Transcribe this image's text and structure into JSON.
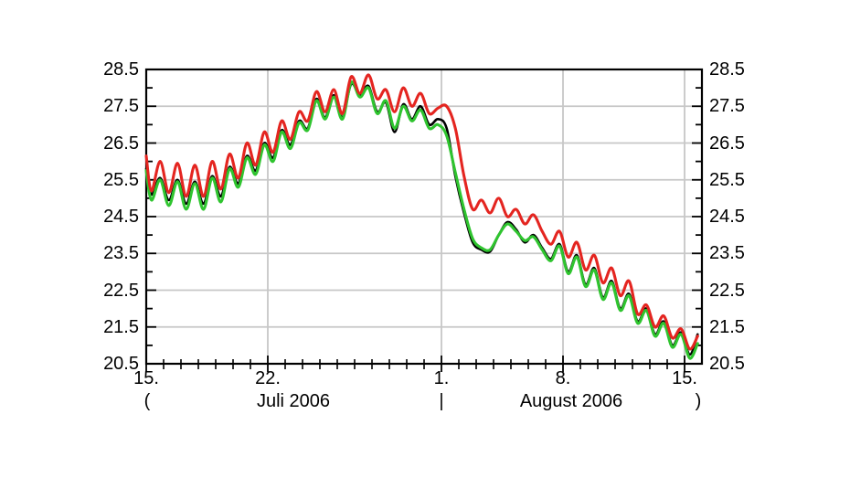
{
  "chart_data": {
    "type": "line",
    "title": "",
    "xlabel": "",
    "ylabel": "",
    "x_unit": "days-since-15-July-2006",
    "x_range": [
      0,
      32
    ],
    "y_range": [
      20.5,
      28.5
    ],
    "grid": {
      "color": "#c7c7c7",
      "h_values": [
        21.5,
        22.5,
        23.5,
        24.5,
        25.5,
        26.5,
        27.5
      ],
      "v_days": [
        7,
        17,
        24,
        31
      ]
    },
    "y_axis": {
      "tick_step_minor": 0.5,
      "labels": [
        "28.5",
        "27.5",
        "26.5",
        "25.5",
        "24.5",
        "23.5",
        "22.5",
        "21.5",
        "20.5"
      ],
      "values": [
        28.5,
        27.5,
        26.5,
        25.5,
        24.5,
        23.5,
        22.5,
        21.5,
        20.5
      ],
      "shown_on": [
        "left",
        "right"
      ]
    },
    "x_axis": {
      "minor_tick_every_days": 1,
      "major_days": [
        0,
        7,
        17,
        24,
        31
      ],
      "tick_labels": [
        {
          "text": "15.",
          "day": 0
        },
        {
          "text": "22.",
          "day": 7
        },
        {
          "text": "1.",
          "day": 17
        },
        {
          "text": "8.",
          "day": 24
        },
        {
          "text": "15.",
          "day": 31
        }
      ]
    },
    "footer": {
      "open_bracket": "(",
      "july_label": "Juli 2006",
      "separator": "|",
      "august_label": "August 2006",
      "close_bracket": ")"
    },
    "x": [
      0,
      0.3,
      0.8,
      1.3,
      1.8,
      2.3,
      2.8,
      3.3,
      3.8,
      4.3,
      4.8,
      5.3,
      5.8,
      6.3,
      6.8,
      7.3,
      7.8,
      8.3,
      8.8,
      9.3,
      9.8,
      10.3,
      10.8,
      11.3,
      11.8,
      12.3,
      12.8,
      13.3,
      13.8,
      14.3,
      14.8,
      15.3,
      15.8,
      16.3,
      16.8,
      17.3,
      17.8,
      18.3,
      18.8,
      19.3,
      19.8,
      20.3,
      20.8,
      21.3,
      21.8,
      22.3,
      22.8,
      23.3,
      23.8,
      24.3,
      24.8,
      25.3,
      25.8,
      26.3,
      26.8,
      27.3,
      27.8,
      28.3,
      28.8,
      29.3,
      29.8,
      30.3,
      30.8,
      31.3,
      31.75
    ],
    "series": [
      {
        "name": "black",
        "color": "#000000",
        "width": 2.6,
        "values": [
          25.8,
          25.1,
          25.55,
          24.95,
          25.5,
          24.85,
          25.45,
          24.85,
          25.6,
          25.05,
          25.85,
          25.4,
          26.15,
          25.75,
          26.5,
          26.1,
          26.85,
          26.45,
          27.1,
          26.9,
          27.7,
          27.2,
          27.8,
          27.2,
          28.1,
          27.8,
          28.05,
          27.35,
          27.6,
          26.8,
          27.55,
          27.15,
          27.5,
          27.0,
          27.15,
          26.9,
          25.6,
          24.6,
          23.8,
          23.6,
          23.55,
          24.0,
          24.35,
          24.15,
          23.8,
          24.0,
          23.65,
          23.35,
          23.75,
          23.0,
          23.45,
          22.65,
          23.1,
          22.3,
          22.75,
          22.0,
          22.4,
          21.65,
          22.0,
          21.3,
          21.65,
          21.0,
          21.35,
          20.75,
          21.3
        ]
      },
      {
        "name": "green",
        "color": "#2fc42f",
        "width": 3.1,
        "values": [
          25.75,
          24.95,
          25.5,
          24.8,
          25.45,
          24.7,
          25.4,
          24.7,
          25.55,
          24.9,
          25.8,
          25.3,
          26.1,
          25.65,
          26.45,
          26.0,
          26.8,
          26.35,
          27.05,
          26.85,
          27.65,
          27.15,
          27.75,
          27.15,
          28.15,
          27.75,
          28.0,
          27.3,
          27.65,
          26.9,
          27.5,
          27.1,
          27.4,
          26.9,
          27.0,
          26.7,
          25.7,
          24.7,
          23.9,
          23.65,
          23.6,
          24.0,
          24.3,
          24.1,
          23.85,
          23.95,
          23.6,
          23.3,
          23.7,
          22.95,
          23.4,
          22.6,
          23.05,
          22.25,
          22.7,
          21.95,
          22.35,
          21.6,
          21.95,
          21.25,
          21.6,
          20.95,
          21.3,
          20.65,
          21.05
        ]
      },
      {
        "name": "red",
        "color": "#e42520",
        "width": 3.1,
        "values": [
          26.15,
          25.2,
          26.0,
          25.15,
          25.95,
          25.05,
          25.9,
          25.05,
          26.0,
          25.25,
          26.2,
          25.55,
          26.5,
          25.9,
          26.8,
          26.25,
          27.1,
          26.6,
          27.35,
          27.1,
          27.9,
          27.35,
          27.95,
          27.3,
          28.3,
          27.85,
          28.35,
          27.7,
          27.95,
          27.35,
          28.0,
          27.5,
          27.85,
          27.3,
          27.45,
          27.5,
          26.9,
          25.6,
          24.7,
          24.95,
          24.6,
          25.0,
          24.5,
          24.7,
          24.3,
          24.55,
          24.1,
          23.75,
          24.1,
          23.4,
          23.8,
          23.05,
          23.45,
          22.7,
          23.1,
          22.35,
          22.75,
          21.85,
          22.1,
          21.5,
          21.8,
          21.2,
          21.45,
          20.9,
          21.25
        ]
      }
    ]
  }
}
